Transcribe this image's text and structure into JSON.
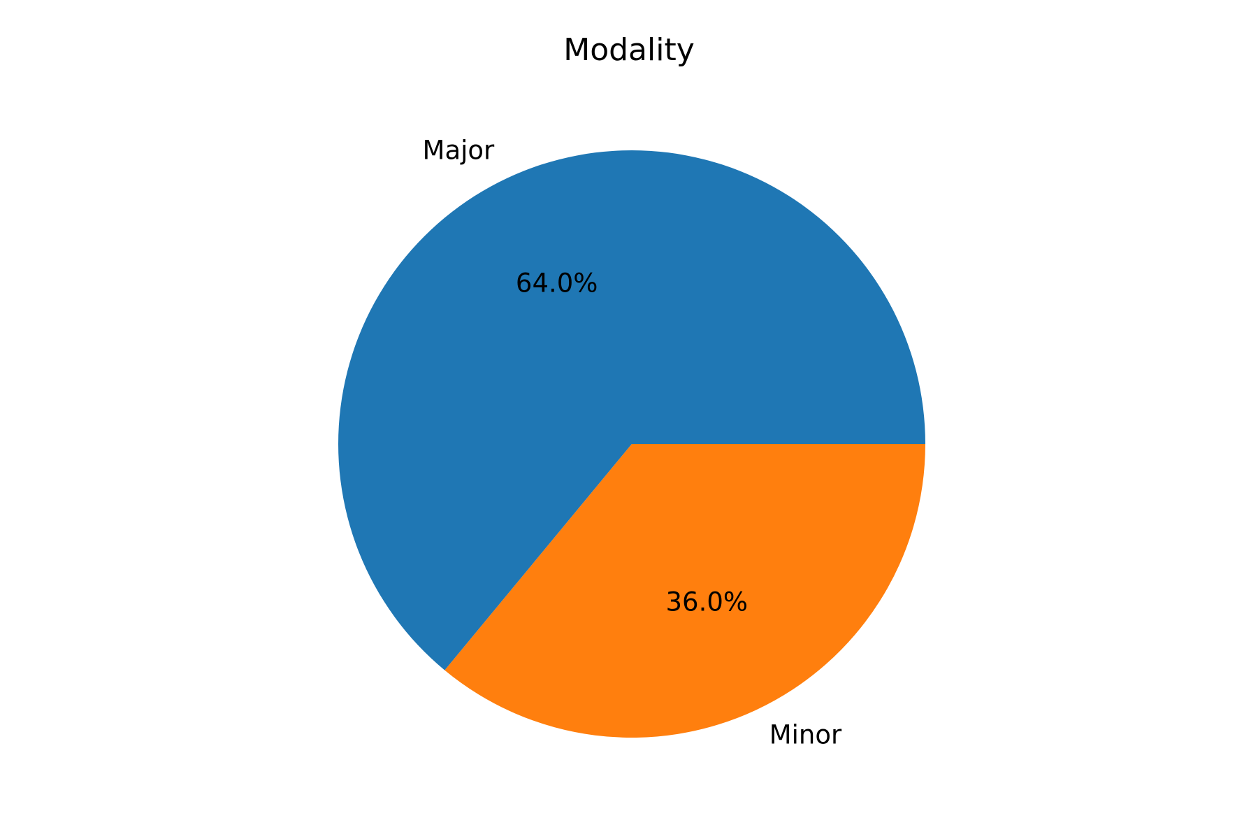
{
  "chart_data": {
    "type": "pie",
    "title": "Modality",
    "categories": [
      "Major",
      "Minor"
    ],
    "values": [
      64.0,
      36.0
    ],
    "value_labels": [
      "64.0%",
      "36.0%"
    ],
    "colors": [
      "#1f77b4",
      "#ff7f0e"
    ],
    "start_angle": 0,
    "direction": "counterclockwise"
  }
}
